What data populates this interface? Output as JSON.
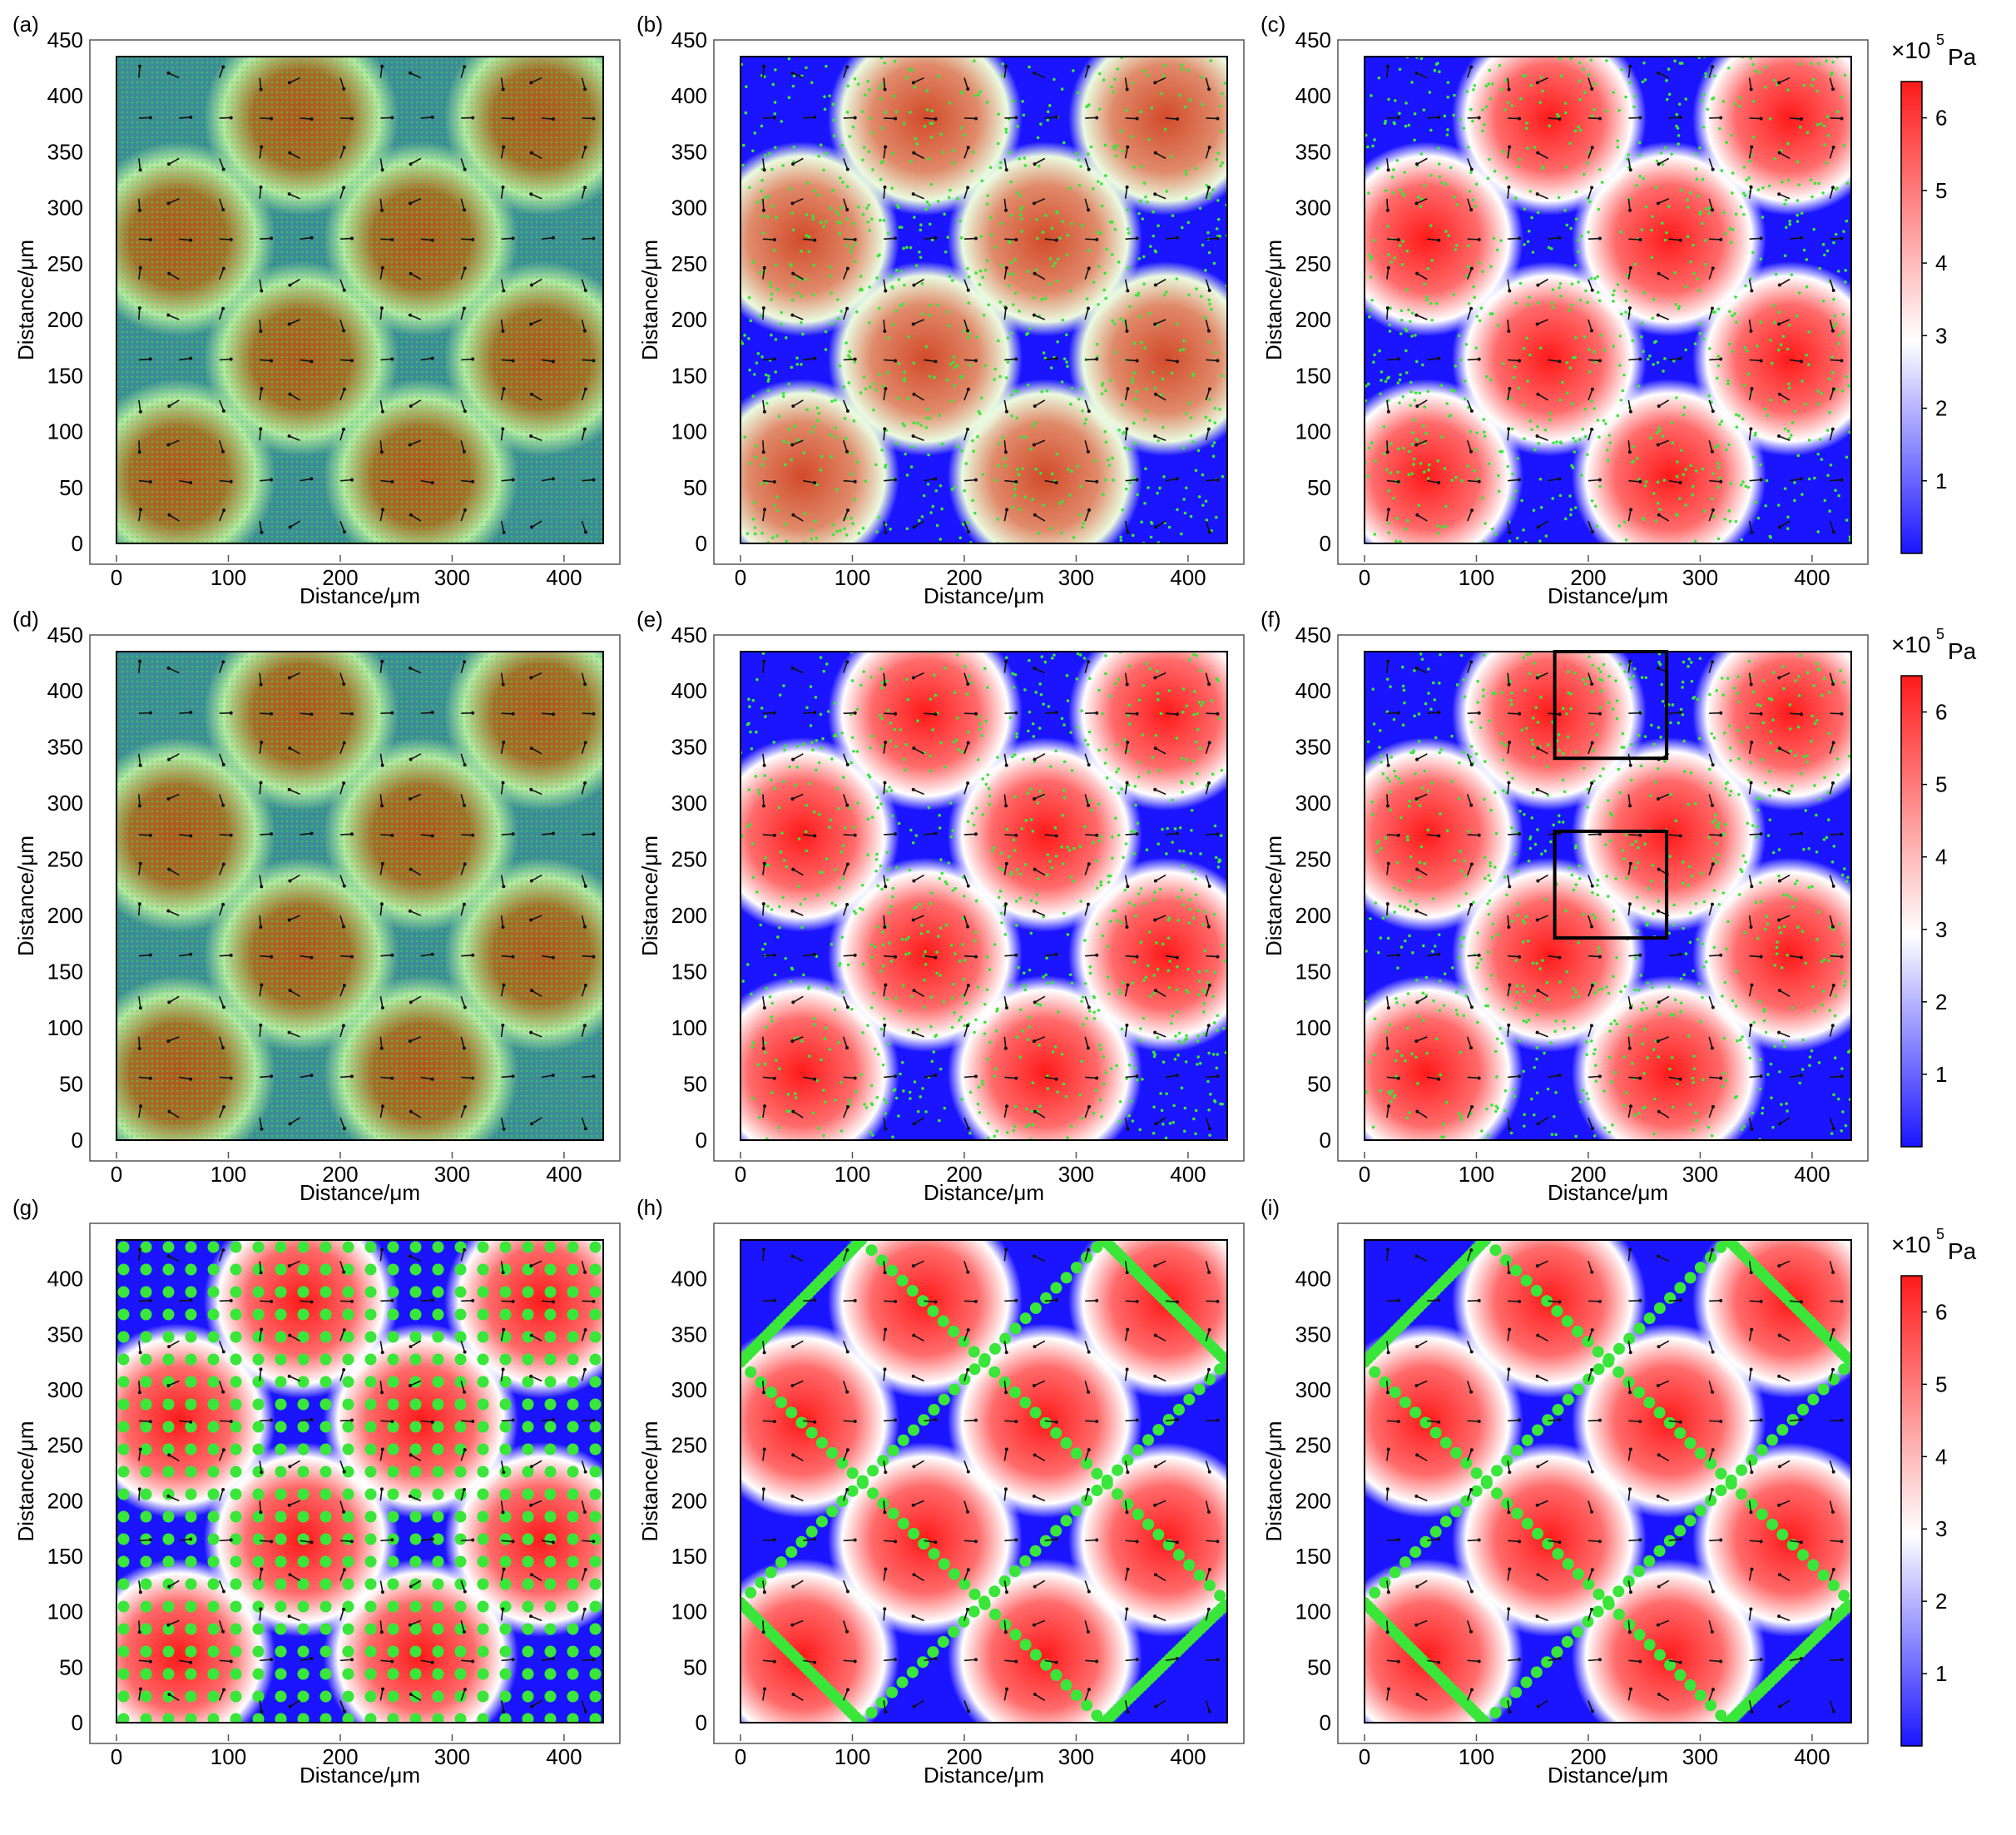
{
  "figure": {
    "colors": {
      "low": "#1a14ff",
      "mid": "#ffffff",
      "high": "#ff1a1a",
      "particle": "#39e639",
      "arrow": "#111111",
      "frame": "#000000",
      "muted_teal": "#3d8a9a",
      "muted_olive": "#a86a2a"
    },
    "colorbars": [
      {
        "title": "×10",
        "exponent": "5",
        "unit": "Pa",
        "ticks": [
          "1",
          "2",
          "3",
          "4",
          "5",
          "6"
        ],
        "range": [
          0,
          6.5
        ]
      },
      {
        "title": "×10",
        "exponent": "5",
        "unit": "Pa",
        "ticks": [
          "1",
          "2",
          "3",
          "4",
          "5",
          "6"
        ],
        "range": [
          0,
          6.5
        ]
      },
      {
        "title": "×10",
        "exponent": "5",
        "unit": "Pa",
        "ticks": [
          "1",
          "2",
          "3",
          "4",
          "5",
          "6"
        ],
        "range": [
          0,
          6.5
        ]
      }
    ]
  },
  "chart_data": [
    {
      "panel": "(a)",
      "type": "heatmap",
      "xlabel": "Distance/μm",
      "ylabel": "Distance/μm",
      "xlim": [
        0,
        435
      ],
      "ylim": [
        0,
        435
      ],
      "xticks": [
        "0",
        "100",
        "200",
        "300",
        "400"
      ],
      "yticks": [
        "0",
        "50",
        "100",
        "150",
        "200",
        "250",
        "300",
        "350",
        "400",
        "450"
      ],
      "field": "pressure",
      "overlay": "arrows + dense particle grid",
      "style": "muted",
      "hotspots": [
        [
          55,
          60
        ],
        [
          272,
          60
        ],
        [
          165,
          165
        ],
        [
          380,
          165
        ],
        [
          55,
          272
        ],
        [
          272,
          272
        ],
        [
          165,
          380
        ],
        [
          380,
          380
        ]
      ]
    },
    {
      "panel": "(b)",
      "type": "heatmap",
      "xlabel": "Distance/μm",
      "ylabel": "Distance/μm",
      "xlim": [
        0,
        435
      ],
      "ylim": [
        0,
        435
      ],
      "xticks": [
        "0",
        "100",
        "200",
        "300",
        "400"
      ],
      "yticks": [
        "0",
        "50",
        "100",
        "150",
        "200",
        "250",
        "300",
        "350",
        "400",
        "450"
      ],
      "field": "pressure",
      "overlay": "arrows + scattered particles",
      "style": "mixed",
      "hotspots": [
        [
          55,
          60
        ],
        [
          272,
          60
        ],
        [
          165,
          165
        ],
        [
          380,
          165
        ],
        [
          55,
          272
        ],
        [
          272,
          272
        ],
        [
          165,
          380
        ],
        [
          380,
          380
        ]
      ]
    },
    {
      "panel": "(c)",
      "type": "heatmap",
      "xlabel": "Distance/μm",
      "ylabel": "Distance/μm",
      "xlim": [
        0,
        435
      ],
      "ylim": [
        0,
        435
      ],
      "xticks": [
        "0",
        "100",
        "200",
        "300",
        "400"
      ],
      "yticks": [
        "0",
        "50",
        "100",
        "150",
        "200",
        "250",
        "300",
        "350",
        "400",
        "450"
      ],
      "field": "pressure",
      "overlay": "arrows + scattered particles",
      "style": "vivid",
      "hotspots": [
        [
          55,
          60
        ],
        [
          272,
          60
        ],
        [
          165,
          165
        ],
        [
          380,
          165
        ],
        [
          55,
          272
        ],
        [
          272,
          272
        ],
        [
          165,
          380
        ],
        [
          380,
          380
        ]
      ]
    },
    {
      "panel": "(d)",
      "type": "heatmap",
      "xlabel": "Distance/μm",
      "ylabel": "Distance/μm",
      "xlim": [
        0,
        435
      ],
      "ylim": [
        0,
        435
      ],
      "xticks": [
        "0",
        "100",
        "200",
        "300",
        "400"
      ],
      "yticks": [
        "0",
        "50",
        "100",
        "150",
        "200",
        "250",
        "300",
        "350",
        "400",
        "450"
      ],
      "field": "pressure",
      "overlay": "arrows + dense particle grid",
      "style": "muted",
      "hotspots": [
        [
          55,
          60
        ],
        [
          272,
          60
        ],
        [
          165,
          165
        ],
        [
          380,
          165
        ],
        [
          55,
          272
        ],
        [
          272,
          272
        ],
        [
          165,
          380
        ],
        [
          380,
          380
        ]
      ]
    },
    {
      "panel": "(e)",
      "type": "heatmap",
      "xlabel": "Distance/μm",
      "ylabel": "Distance/μm",
      "xlim": [
        0,
        435
      ],
      "ylim": [
        0,
        435
      ],
      "xticks": [
        "0",
        "100",
        "200",
        "300",
        "400"
      ],
      "yticks": [
        "0",
        "50",
        "100",
        "150",
        "200",
        "250",
        "300",
        "350",
        "400",
        "450"
      ],
      "field": "pressure",
      "overlay": "arrows + particle clusters",
      "style": "vivid",
      "hotspots": [
        [
          55,
          60
        ],
        [
          272,
          60
        ],
        [
          165,
          165
        ],
        [
          380,
          165
        ],
        [
          55,
          272
        ],
        [
          272,
          272
        ],
        [
          165,
          380
        ],
        [
          380,
          380
        ]
      ]
    },
    {
      "panel": "(f)",
      "type": "heatmap",
      "xlabel": "Distance/μm",
      "ylabel": "Distance/μm",
      "xlim": [
        0,
        435
      ],
      "ylim": [
        0,
        435
      ],
      "xticks": [
        "0",
        "100",
        "200",
        "300",
        "400"
      ],
      "yticks": [
        "0",
        "50",
        "100",
        "150",
        "200",
        "250",
        "300",
        "350",
        "400",
        "450"
      ],
      "field": "pressure",
      "overlay": "arrows + particle vortices",
      "style": "vivid",
      "hotspots": [
        [
          55,
          60
        ],
        [
          272,
          60
        ],
        [
          165,
          165
        ],
        [
          380,
          165
        ],
        [
          55,
          272
        ],
        [
          272,
          272
        ],
        [
          165,
          380
        ],
        [
          380,
          380
        ]
      ],
      "boxes": [
        [
          170,
          340,
          270,
          435
        ],
        [
          170,
          180,
          270,
          275
        ]
      ]
    },
    {
      "panel": "(g)",
      "type": "heatmap",
      "xlabel": "Distance/μm",
      "ylabel": "Distance/μm",
      "xlim": [
        0,
        435
      ],
      "ylim": [
        0,
        435
      ],
      "xticks": [
        "0",
        "100",
        "200",
        "300",
        "400"
      ],
      "yticks": [
        "0",
        "50",
        "100",
        "150",
        "200",
        "250",
        "300",
        "350",
        "400"
      ],
      "field": "pressure",
      "overlay": "arrows + large particle grid",
      "style": "vivid",
      "hotspots": [
        [
          55,
          60
        ],
        [
          272,
          60
        ],
        [
          165,
          165
        ],
        [
          380,
          165
        ],
        [
          55,
          272
        ],
        [
          272,
          272
        ],
        [
          165,
          380
        ],
        [
          380,
          380
        ]
      ]
    },
    {
      "panel": "(h)",
      "type": "heatmap",
      "xlabel": "Distance/μm",
      "ylabel": "Distance/μm",
      "xlim": [
        0,
        435
      ],
      "ylim": [
        0,
        435
      ],
      "xticks": [
        "0",
        "100",
        "200",
        "300",
        "400"
      ],
      "yticks": [
        "0",
        "50",
        "100",
        "150",
        "200",
        "250",
        "300",
        "350",
        "400"
      ],
      "field": "pressure",
      "overlay": "arrows + particles on nodal lines",
      "style": "vivid",
      "hotspots": [
        [
          55,
          60
        ],
        [
          272,
          60
        ],
        [
          165,
          165
        ],
        [
          380,
          165
        ],
        [
          55,
          272
        ],
        [
          272,
          272
        ],
        [
          165,
          380
        ],
        [
          380,
          380
        ]
      ]
    },
    {
      "panel": "(i)",
      "type": "heatmap",
      "xlabel": "Distance/μm",
      "ylabel": "Distance/μm",
      "xlim": [
        0,
        435
      ],
      "ylim": [
        0,
        435
      ],
      "xticks": [
        "0",
        "100",
        "200",
        "300",
        "400"
      ],
      "yticks": [
        "0",
        "50",
        "100",
        "150",
        "200",
        "250",
        "300",
        "350",
        "400"
      ],
      "field": "pressure",
      "overlay": "arrows + particles on nodal lines",
      "style": "vivid",
      "hotspots": [
        [
          55,
          60
        ],
        [
          272,
          60
        ],
        [
          165,
          165
        ],
        [
          380,
          165
        ],
        [
          55,
          272
        ],
        [
          272,
          272
        ],
        [
          165,
          380
        ],
        [
          380,
          380
        ]
      ]
    }
  ]
}
